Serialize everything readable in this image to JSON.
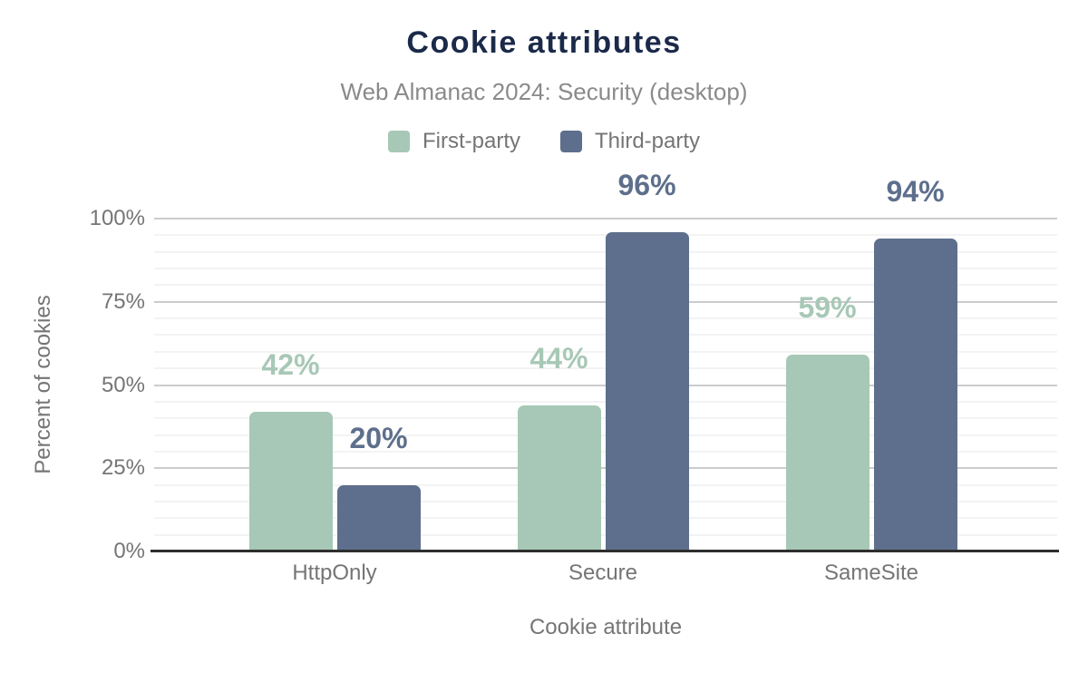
{
  "header": {
    "title": "Cookie attributes",
    "subtitle": "Web Almanac 2024: Security (desktop)"
  },
  "chart_data": {
    "type": "bar",
    "title": "Cookie attributes",
    "subtitle": "Web Almanac 2024: Security (desktop)",
    "categories": [
      "HttpOnly",
      "Secure",
      "SameSite"
    ],
    "series": [
      {
        "name": "First-party",
        "color": "#a7c8b6",
        "values": [
          42,
          44,
          59
        ],
        "value_labels": [
          "42%",
          "44%",
          "59%"
        ]
      },
      {
        "name": "Third-party",
        "color": "#5d6f8c",
        "values": [
          20,
          96,
          94
        ],
        "value_labels": [
          "20%",
          "96%",
          "94%"
        ]
      }
    ],
    "xlabel": "Cookie attribute",
    "ylabel": "Percent of cookies",
    "ylim": [
      0,
      100
    ],
    "yticks": [
      "0%",
      "25%",
      "50%",
      "75%",
      "100%"
    ],
    "ytick_values": [
      0,
      25,
      50,
      75,
      100
    ],
    "grid": {
      "major_step": 25,
      "minor_step": 5,
      "major_color": "#cccccc",
      "minor_color": "#f3f3f3"
    },
    "legend_position": "top"
  },
  "colors": {
    "title": "#1b2a49",
    "subtitle": "#8a8a8a",
    "axis_text": "#757575",
    "axis_line": "#2e2e2e",
    "first_party": "#a7c8b6",
    "third_party": "#5d6f8c"
  }
}
